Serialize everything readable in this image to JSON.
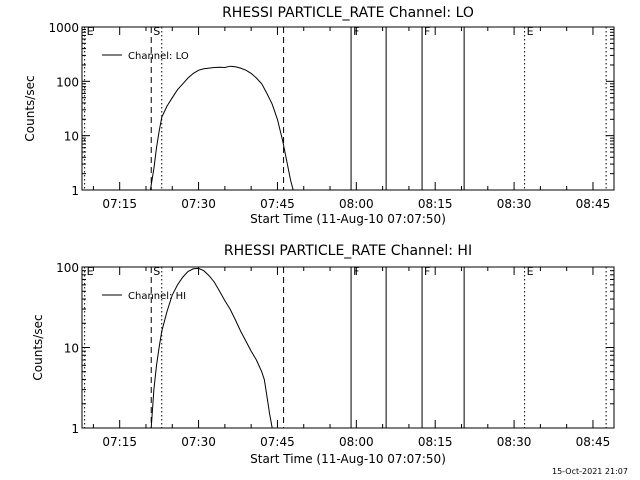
{
  "chart_data": [
    {
      "type": "line",
      "title": "RHESSI PARTICLE_RATE Channel: LO",
      "xlabel": "Start Time (11-Aug-10 07:07:50)",
      "ylabel": "Counts/sec",
      "yscale": "log",
      "ylim": [
        1,
        1000
      ],
      "xlim": [
        "07:07:50",
        "08:49:00"
      ],
      "x_tick_labels": [
        "07:15",
        "07:30",
        "07:45",
        "08:00",
        "08:15",
        "08:30",
        "08:45"
      ],
      "y_tick_labels": [
        "1",
        "10",
        "100",
        "1000"
      ],
      "legend": {
        "labels": [
          "Channel: LO"
        ],
        "position": "top-left"
      },
      "series": [
        {
          "name": "Channel: LO",
          "x": [
            "07:20:50",
            "07:21:30",
            "07:22:00",
            "07:22:30",
            "07:23:00",
            "07:24:00",
            "07:25:00",
            "07:26:00",
            "07:27:00",
            "07:28:00",
            "07:29:00",
            "07:30:00",
            "07:31:00",
            "07:32:00",
            "07:33:00",
            "07:34:00",
            "07:35:00",
            "07:36:00",
            "07:37:00",
            "07:38:00",
            "07:39:00",
            "07:40:00",
            "07:41:00",
            "07:42:00",
            "07:43:00",
            "07:44:00",
            "07:45:00",
            "07:46:00",
            "07:46:45",
            "07:47:30",
            "07:48:00"
          ],
          "y": [
            1,
            2.5,
            6,
            12,
            22,
            35,
            50,
            70,
            90,
            115,
            140,
            160,
            170,
            175,
            180,
            182,
            180,
            190,
            185,
            175,
            160,
            140,
            115,
            90,
            60,
            38,
            20,
            8,
            3.5,
            1.5,
            1
          ]
        }
      ],
      "markers": [
        {
          "label": "E",
          "time": "07:08:20",
          "style": "dotted"
        },
        {
          "label": "S",
          "time": "07:21:00",
          "style": "dashed"
        },
        {
          "label": "",
          "time": "07:23:00",
          "style": "dotted"
        },
        {
          "label": "",
          "time": "07:46:10",
          "style": "dashed"
        },
        {
          "label": "F",
          "time": "07:59:00",
          "style": "solid"
        },
        {
          "label": "",
          "time": "08:05:40",
          "style": "solid"
        },
        {
          "label": "F",
          "time": "08:12:30",
          "style": "solid"
        },
        {
          "label": "",
          "time": "08:20:30",
          "style": "solid"
        },
        {
          "label": "E",
          "time": "08:32:00",
          "style": "dotted"
        },
        {
          "label": "",
          "time": "08:47:30",
          "style": "dotted"
        }
      ]
    },
    {
      "type": "line",
      "title": "RHESSI PARTICLE_RATE Channel: HI",
      "xlabel": "Start Time (11-Aug-10 07:07:50)",
      "ylabel": "Counts/sec",
      "yscale": "log",
      "ylim": [
        1,
        100
      ],
      "xlim": [
        "07:07:50",
        "08:49:00"
      ],
      "x_tick_labels": [
        "07:15",
        "07:30",
        "07:45",
        "08:00",
        "08:15",
        "08:30",
        "08:45"
      ],
      "y_tick_labels": [
        "1",
        "10",
        "100"
      ],
      "legend": {
        "labels": [
          "Channel: HI"
        ],
        "position": "top-left"
      },
      "series": [
        {
          "name": "Channel: HI",
          "x": [
            "07:21:00",
            "07:21:30",
            "07:22:00",
            "07:22:30",
            "07:23:00",
            "07:24:00",
            "07:25:00",
            "07:26:00",
            "07:27:00",
            "07:28:00",
            "07:29:00",
            "07:30:00",
            "07:31:00",
            "07:32:00",
            "07:33:00",
            "07:34:00",
            "07:35:00",
            "07:36:00",
            "07:37:00",
            "07:38:00",
            "07:39:00",
            "07:40:00",
            "07:41:00",
            "07:42:00",
            "07:42:30",
            "07:43:00",
            "07:43:30",
            "07:44:00"
          ],
          "y": [
            1,
            3,
            6,
            10,
            16,
            28,
            45,
            60,
            75,
            88,
            95,
            96,
            90,
            78,
            65,
            50,
            38,
            30,
            22,
            16,
            12,
            9,
            7,
            5,
            4,
            2.5,
            1.5,
            1
          ]
        }
      ],
      "markers": [
        {
          "label": "E",
          "time": "07:08:20",
          "style": "dotted"
        },
        {
          "label": "S",
          "time": "07:21:00",
          "style": "dashed"
        },
        {
          "label": "",
          "time": "07:23:00",
          "style": "dotted"
        },
        {
          "label": "",
          "time": "07:46:10",
          "style": "dashed"
        },
        {
          "label": "F",
          "time": "07:59:00",
          "style": "solid"
        },
        {
          "label": "",
          "time": "08:05:40",
          "style": "solid"
        },
        {
          "label": "F",
          "time": "08:12:30",
          "style": "solid"
        },
        {
          "label": "",
          "time": "08:20:30",
          "style": "solid"
        },
        {
          "label": "E",
          "time": "08:32:00",
          "style": "dotted"
        },
        {
          "label": "",
          "time": "08:47:30",
          "style": "dotted"
        }
      ]
    }
  ],
  "footer": {
    "timestamp": "15-Oct-2021 21:07"
  }
}
